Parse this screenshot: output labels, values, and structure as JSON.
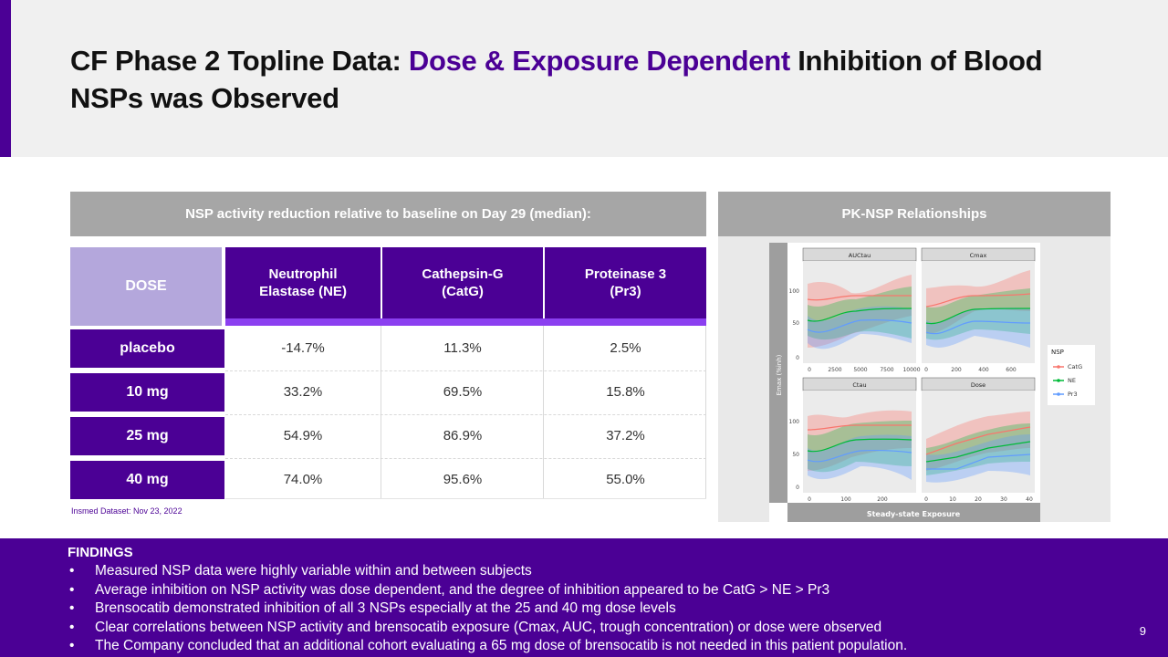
{
  "slide": {
    "title_part1": "CF Phase 2 Topline Data: ",
    "title_accent": "Dose & Exposure Dependent",
    "title_part2": " Inhibition of Blood NSPs was Observed",
    "page_number": "9"
  },
  "table": {
    "heading": "NSP activity reduction relative to baseline on Day 29 (median):",
    "columns": [
      {
        "label": "DOSE"
      },
      {
        "line1": "Neutrophil",
        "line2": "Elastase (NE)"
      },
      {
        "line1": "Cathepsin-G",
        "line2": "(CatG)"
      },
      {
        "line1": "Proteinase 3",
        "line2": "(Pr3)"
      }
    ],
    "rows": [
      {
        "dose": "placebo",
        "ne": "-14.7%",
        "catg": "11.3%",
        "pr3": "2.5%"
      },
      {
        "dose": "10 mg",
        "ne": "33.2%",
        "catg": "69.5%",
        "pr3": "15.8%"
      },
      {
        "dose": "25 mg",
        "ne": "54.9%",
        "catg": "86.9%",
        "pr3": "37.2%"
      },
      {
        "dose": "40 mg",
        "ne": "74.0%",
        "catg": "95.6%",
        "pr3": "55.0%"
      }
    ],
    "footnote": "Insmed Dataset: Nov 23, 2022"
  },
  "pk": {
    "heading": "PK-NSP Relationships",
    "y_label": "Emax (%inh)",
    "x_label": "Steady-state Exposure",
    "facets": [
      "AUCtau",
      "Cmax",
      "Ctau",
      "Dose"
    ],
    "facet_ticks": [
      [
        "0",
        "2500",
        "5000",
        "7500",
        "10000"
      ],
      [
        "0",
        "200",
        "400",
        "600"
      ],
      [
        "0",
        "100",
        "200"
      ],
      [
        "0",
        "10",
        "20",
        "30",
        "40"
      ]
    ],
    "y_ticks": [
      "0",
      "50",
      "100"
    ],
    "legend_title": "NSP",
    "legend": [
      {
        "name": "CatG",
        "color": "#f8766d"
      },
      {
        "name": "NE",
        "color": "#00ba38"
      },
      {
        "name": "Pr3",
        "color": "#619cff"
      }
    ]
  },
  "findings": {
    "title": "FINDINGS",
    "items": [
      "Measured NSP data were highly variable within and between subjects",
      "Average inhibition on NSP activity was dose dependent, and the degree of inhibition appeared to be CatG > NE > Pr3",
      "Brensocatib demonstrated inhibition of all 3 NSPs especially at the 25 and 40 mg dose levels",
      "Clear correlations between NSP activity and brensocatib exposure (Cmax, AUC, trough concentration) or dose were observed",
      "The Company concluded that an additional cohort evaluating a 65 mg dose of brensocatib is not needed in this patient population."
    ]
  },
  "colors": {
    "purple": "#4b0095",
    "lavender": "#b4a7dc",
    "strip": "#8b3ff0",
    "grey_header": "#a6a6a6"
  }
}
